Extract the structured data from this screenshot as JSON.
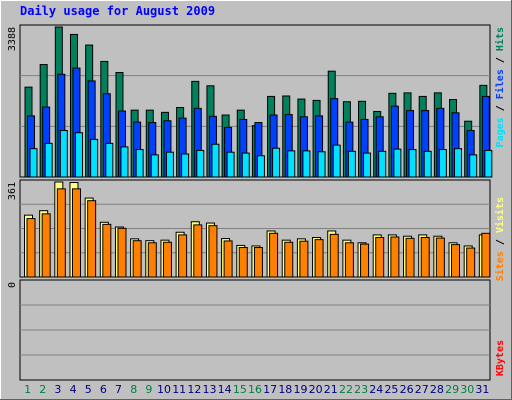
{
  "chart_data": [
    {
      "type": "bar",
      "title": "Daily usage for August 2009",
      "categories": [
        "1",
        "2",
        "3",
        "4",
        "5",
        "6",
        "7",
        "8",
        "9",
        "10",
        "11",
        "12",
        "13",
        "14",
        "15",
        "16",
        "17",
        "18",
        "19",
        "20",
        "21",
        "22",
        "23",
        "24",
        "25",
        "26",
        "27",
        "28",
        "29",
        "30",
        "31"
      ],
      "weekend_days": [
        "1",
        "2",
        "8",
        "9",
        "15",
        "16",
        "22",
        "23",
        "29",
        "30"
      ],
      "ylabel_parts": [
        "Pages",
        "Files",
        "Hits"
      ],
      "ymax_label": "3388",
      "ylim": [
        0,
        3388
      ],
      "series": [
        {
          "name": "Hits",
          "color": "#00805c",
          "values": [
            2030,
            2540,
            3388,
            3220,
            2980,
            2610,
            2360,
            1510,
            1510,
            1460,
            1570,
            2160,
            2060,
            1400,
            1510,
            1160,
            1820,
            1830,
            1760,
            1730,
            2390,
            1700,
            1710,
            1480,
            1890,
            1900,
            1820,
            1900,
            1750,
            1260,
            2070
          ]
        },
        {
          "name": "Files",
          "color": "#0040ff",
          "values": [
            1380,
            1580,
            2320,
            2460,
            2170,
            1880,
            1490,
            1240,
            1230,
            1270,
            1330,
            1550,
            1370,
            1120,
            1300,
            1230,
            1400,
            1410,
            1360,
            1380,
            1770,
            1240,
            1300,
            1360,
            1600,
            1500,
            1500,
            1550,
            1450,
            1050,
            1820
          ]
        },
        {
          "name": "Pages",
          "color": "#00e0ff",
          "values": [
            640,
            760,
            1050,
            1000,
            850,
            760,
            680,
            620,
            500,
            560,
            520,
            600,
            740,
            560,
            540,
            480,
            650,
            590,
            590,
            570,
            720,
            580,
            540,
            580,
            630,
            620,
            580,
            620,
            640,
            500,
            600
          ]
        }
      ]
    },
    {
      "type": "bar",
      "ylabel_parts": [
        "Sites",
        "Visits"
      ],
      "ymax_label": "361",
      "ylim": [
        0,
        361
      ],
      "series": [
        {
          "name": "Visits",
          "color": "#ffff80",
          "values": [
            235,
            252,
            361,
            359,
            300,
            208,
            190,
            145,
            138,
            140,
            170,
            210,
            205,
            146,
            120,
            118,
            175,
            140,
            145,
            150,
            175,
            140,
            130,
            160,
            160,
            155,
            160,
            155,
            130,
            118,
            160
          ]
        },
        {
          "name": "Sites",
          "color": "#ff8000",
          "values": [
            222,
            240,
            335,
            335,
            290,
            200,
            185,
            138,
            130,
            132,
            160,
            198,
            195,
            137,
            112,
            112,
            166,
            132,
            136,
            142,
            162,
            130,
            125,
            150,
            152,
            147,
            150,
            148,
            123,
            110,
            166
          ]
        }
      ]
    },
    {
      "type": "bar",
      "ylabel_parts": [
        "KBytes"
      ],
      "ymax_label": "0",
      "ylim": [
        0,
        1
      ],
      "series": [
        {
          "name": "KBytes",
          "color": "#ff0000",
          "values": [
            0,
            0,
            0,
            0,
            0,
            0,
            0,
            0,
            0,
            0,
            0,
            0,
            0,
            0,
            0,
            0,
            0,
            0,
            0,
            0,
            0,
            0,
            0,
            0,
            0,
            0,
            0,
            0,
            0,
            0,
            0
          ]
        }
      ]
    }
  ],
  "colors": {
    "background": "#c0c0c0",
    "title": "#0000ff",
    "weekday_label": "#000080",
    "weekend_label": "#008040",
    "hits": "#00805c",
    "files": "#0040ff",
    "pages": "#00e0ff",
    "visits": "#ffff80",
    "sites": "#ff8000",
    "kbytes": "#ff0000"
  }
}
